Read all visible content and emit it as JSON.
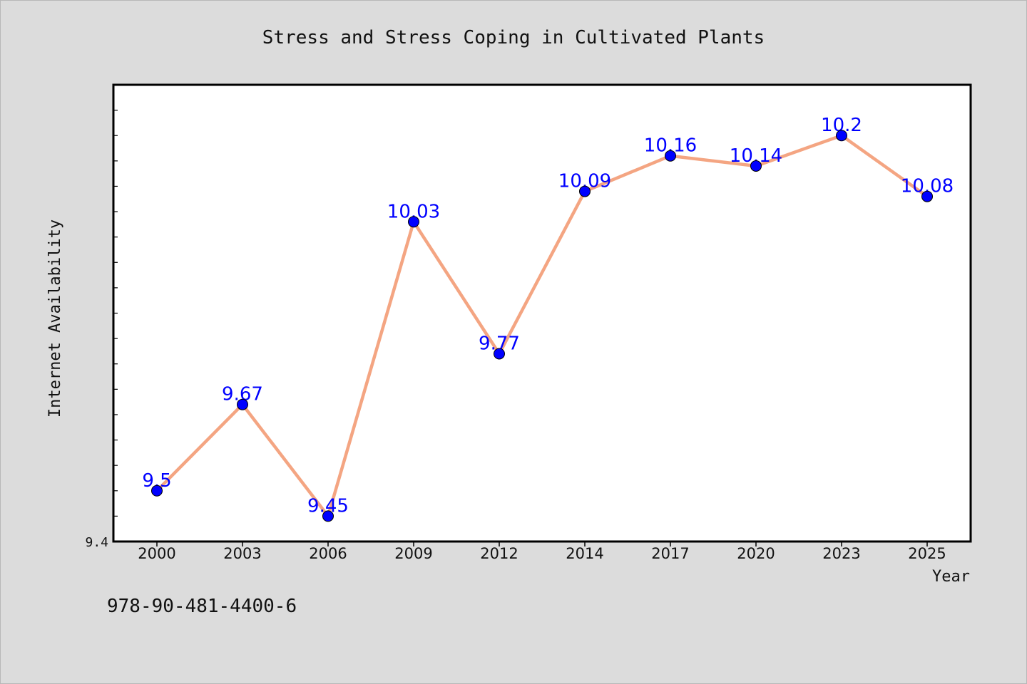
{
  "chart_data": {
    "type": "line",
    "title": "Stress and Stress Coping in Cultivated Plants",
    "xlabel": "Year",
    "ylabel": "Internet Availability",
    "categories": [
      "2000",
      "2003",
      "2006",
      "2009",
      "2012",
      "2014",
      "2017",
      "2020",
      "2023",
      "2025"
    ],
    "series": [
      {
        "values": [
          9.5,
          9.67,
          9.45,
          10.03,
          9.77,
          10.09,
          10.16,
          10.14,
          10.2,
          10.08
        ],
        "data_labels": [
          "9.5",
          "9.67",
          "9.45",
          "10.03",
          "9.77",
          "10.09",
          "10.16",
          "10.14",
          "10.2",
          "10.08"
        ]
      }
    ],
    "ylim": [
      9.4,
      10.3
    ],
    "y_tick_labels": [
      "9.4"
    ],
    "grid": false,
    "colors": {
      "line": "#f4a582",
      "marker": "#0000ff",
      "label": "#0000ff",
      "plot_background": "#ffffff",
      "page_background": "#dcdcdc"
    }
  },
  "footer": {
    "isbn": "978-90-481-4400-6"
  }
}
